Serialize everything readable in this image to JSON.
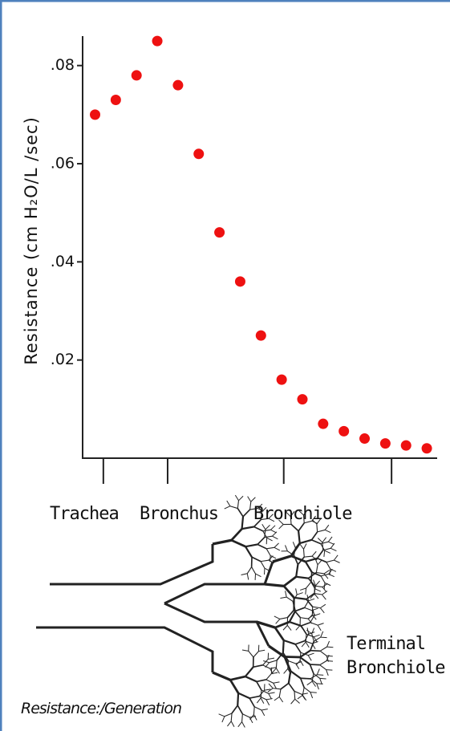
{
  "chart_data": {
    "type": "scatter",
    "y_label": "Resistance (cm H₂O/L /sec)",
    "x": [
      0,
      1,
      2,
      3,
      4,
      5,
      6,
      7,
      8,
      9,
      10,
      11,
      12,
      13,
      14,
      15,
      16
    ],
    "series": [
      {
        "color": "#ee1111",
        "values": [
          0.07,
          0.073,
          0.078,
          0.085,
          0.076,
          0.062,
          0.046,
          0.036,
          0.025,
          0.016,
          0.012,
          0.007,
          0.0055,
          0.004,
          0.003,
          0.0026,
          0.002
        ]
      }
    ],
    "xlim": [
      -0.6,
      16.5
    ],
    "xticks": [
      0.4,
      3.5,
      9.1,
      14.3
    ],
    "ylim": [
      0,
      0.086
    ],
    "yticks": [
      {
        "value": 0.02,
        "label": ".02"
      },
      {
        "value": 0.04,
        "label": ".04"
      },
      {
        "value": 0.06,
        "label": ".06"
      },
      {
        "value": 0.08,
        "label": ".08"
      }
    ],
    "grid": false,
    "annotations": [
      "Trachea",
      "Bronchus",
      "Bronchiole",
      "Terminal\nBronchiole"
    ],
    "caption": "Resistance:/Generation"
  }
}
